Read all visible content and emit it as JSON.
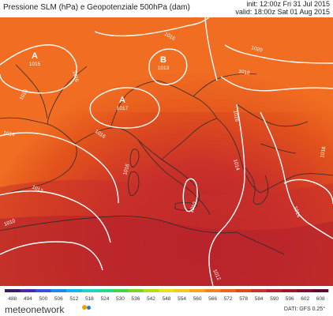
{
  "header": {
    "title": "Pressione SLM (hPa) e Geopotenziale 500hPa (dam)",
    "init": "init: 12:00z Fri 31 Jul 2015",
    "valid": "valid: 18:00z Sat 01 Aug 2015"
  },
  "map": {
    "pressure_labels": [
      "1016",
      "1016",
      "1016",
      "1014",
      "1012",
      "1010",
      "1016",
      "1012",
      "1010",
      "1014",
      "1016",
      "1020",
      "1018",
      "1016",
      "1016",
      "1014"
    ],
    "centers": [
      {
        "letter": "A",
        "value": "1015"
      },
      {
        "letter": "A",
        "value": "1017"
      },
      {
        "letter": "B",
        "value": "1013"
      }
    ],
    "colors": {
      "outer": "#e2521c",
      "warm_core": "#b3202c",
      "mid": "#c9302a",
      "north": "#f06d22",
      "isobar": "#ffffff",
      "border": "#2b2b2b"
    }
  },
  "colorbar": {
    "ticks": [
      "488",
      "494",
      "500",
      "506",
      "512",
      "518",
      "524",
      "530",
      "536",
      "542",
      "548",
      "554",
      "560",
      "566",
      "572",
      "578",
      "584",
      "590",
      "596",
      "602",
      "608"
    ],
    "colors": [
      "#3a1a66",
      "#4a2aa8",
      "#2a55d6",
      "#1a8ce6",
      "#12b6e8",
      "#18d6c8",
      "#22d98c",
      "#3fd44a",
      "#7ad520",
      "#b8dc14",
      "#e6e214",
      "#f8c818",
      "#f7a51a",
      "#f2831d",
      "#ec631f",
      "#de4620",
      "#c9302a",
      "#b3202c",
      "#9c1430",
      "#7e0f33",
      "#5c0a30"
    ]
  },
  "footer": {
    "brand": "meteonetwork",
    "source": "DATI: GFS 0.25°"
  }
}
